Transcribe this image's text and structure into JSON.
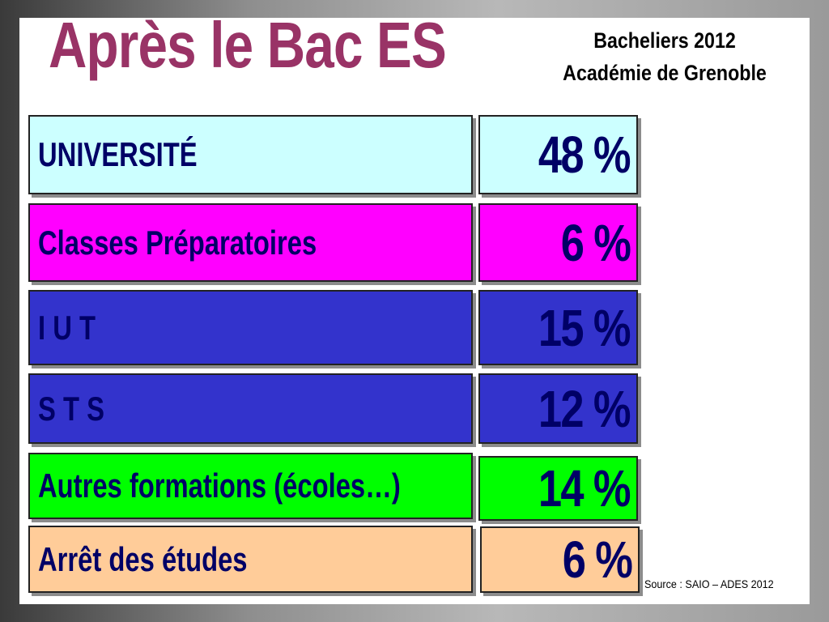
{
  "title": "Après le Bac ES",
  "subtitle_lines": [
    "Bacheliers 2012",
    "Académie de Grenoble"
  ],
  "rows": [
    {
      "label": "UNIVERSITÉ",
      "value": "48 %",
      "bg": "#ccffff",
      "fg": "#000066"
    },
    {
      "label": "Classes Préparatoires",
      "value": "6 %",
      "bg": "#ff00ff",
      "fg": "#000066"
    },
    {
      "label": "I U T",
      "value": "15 %",
      "bg": "#3333cc",
      "fg": "#000066"
    },
    {
      "label": "S T S",
      "value": "12 %",
      "bg": "#3333cc",
      "fg": "#000066"
    },
    {
      "label": "Autres formations (écoles…)",
      "value": "14 %",
      "bg": "#00ff00",
      "fg": "#000066"
    },
    {
      "label": "Arrêt des études",
      "value": "6 %",
      "bg": "#ffcc99",
      "fg": "#000066"
    }
  ],
  "source": "Source : SAIO – ADES 2012",
  "colors": {
    "title": "#993366",
    "frame": "#222222"
  }
}
